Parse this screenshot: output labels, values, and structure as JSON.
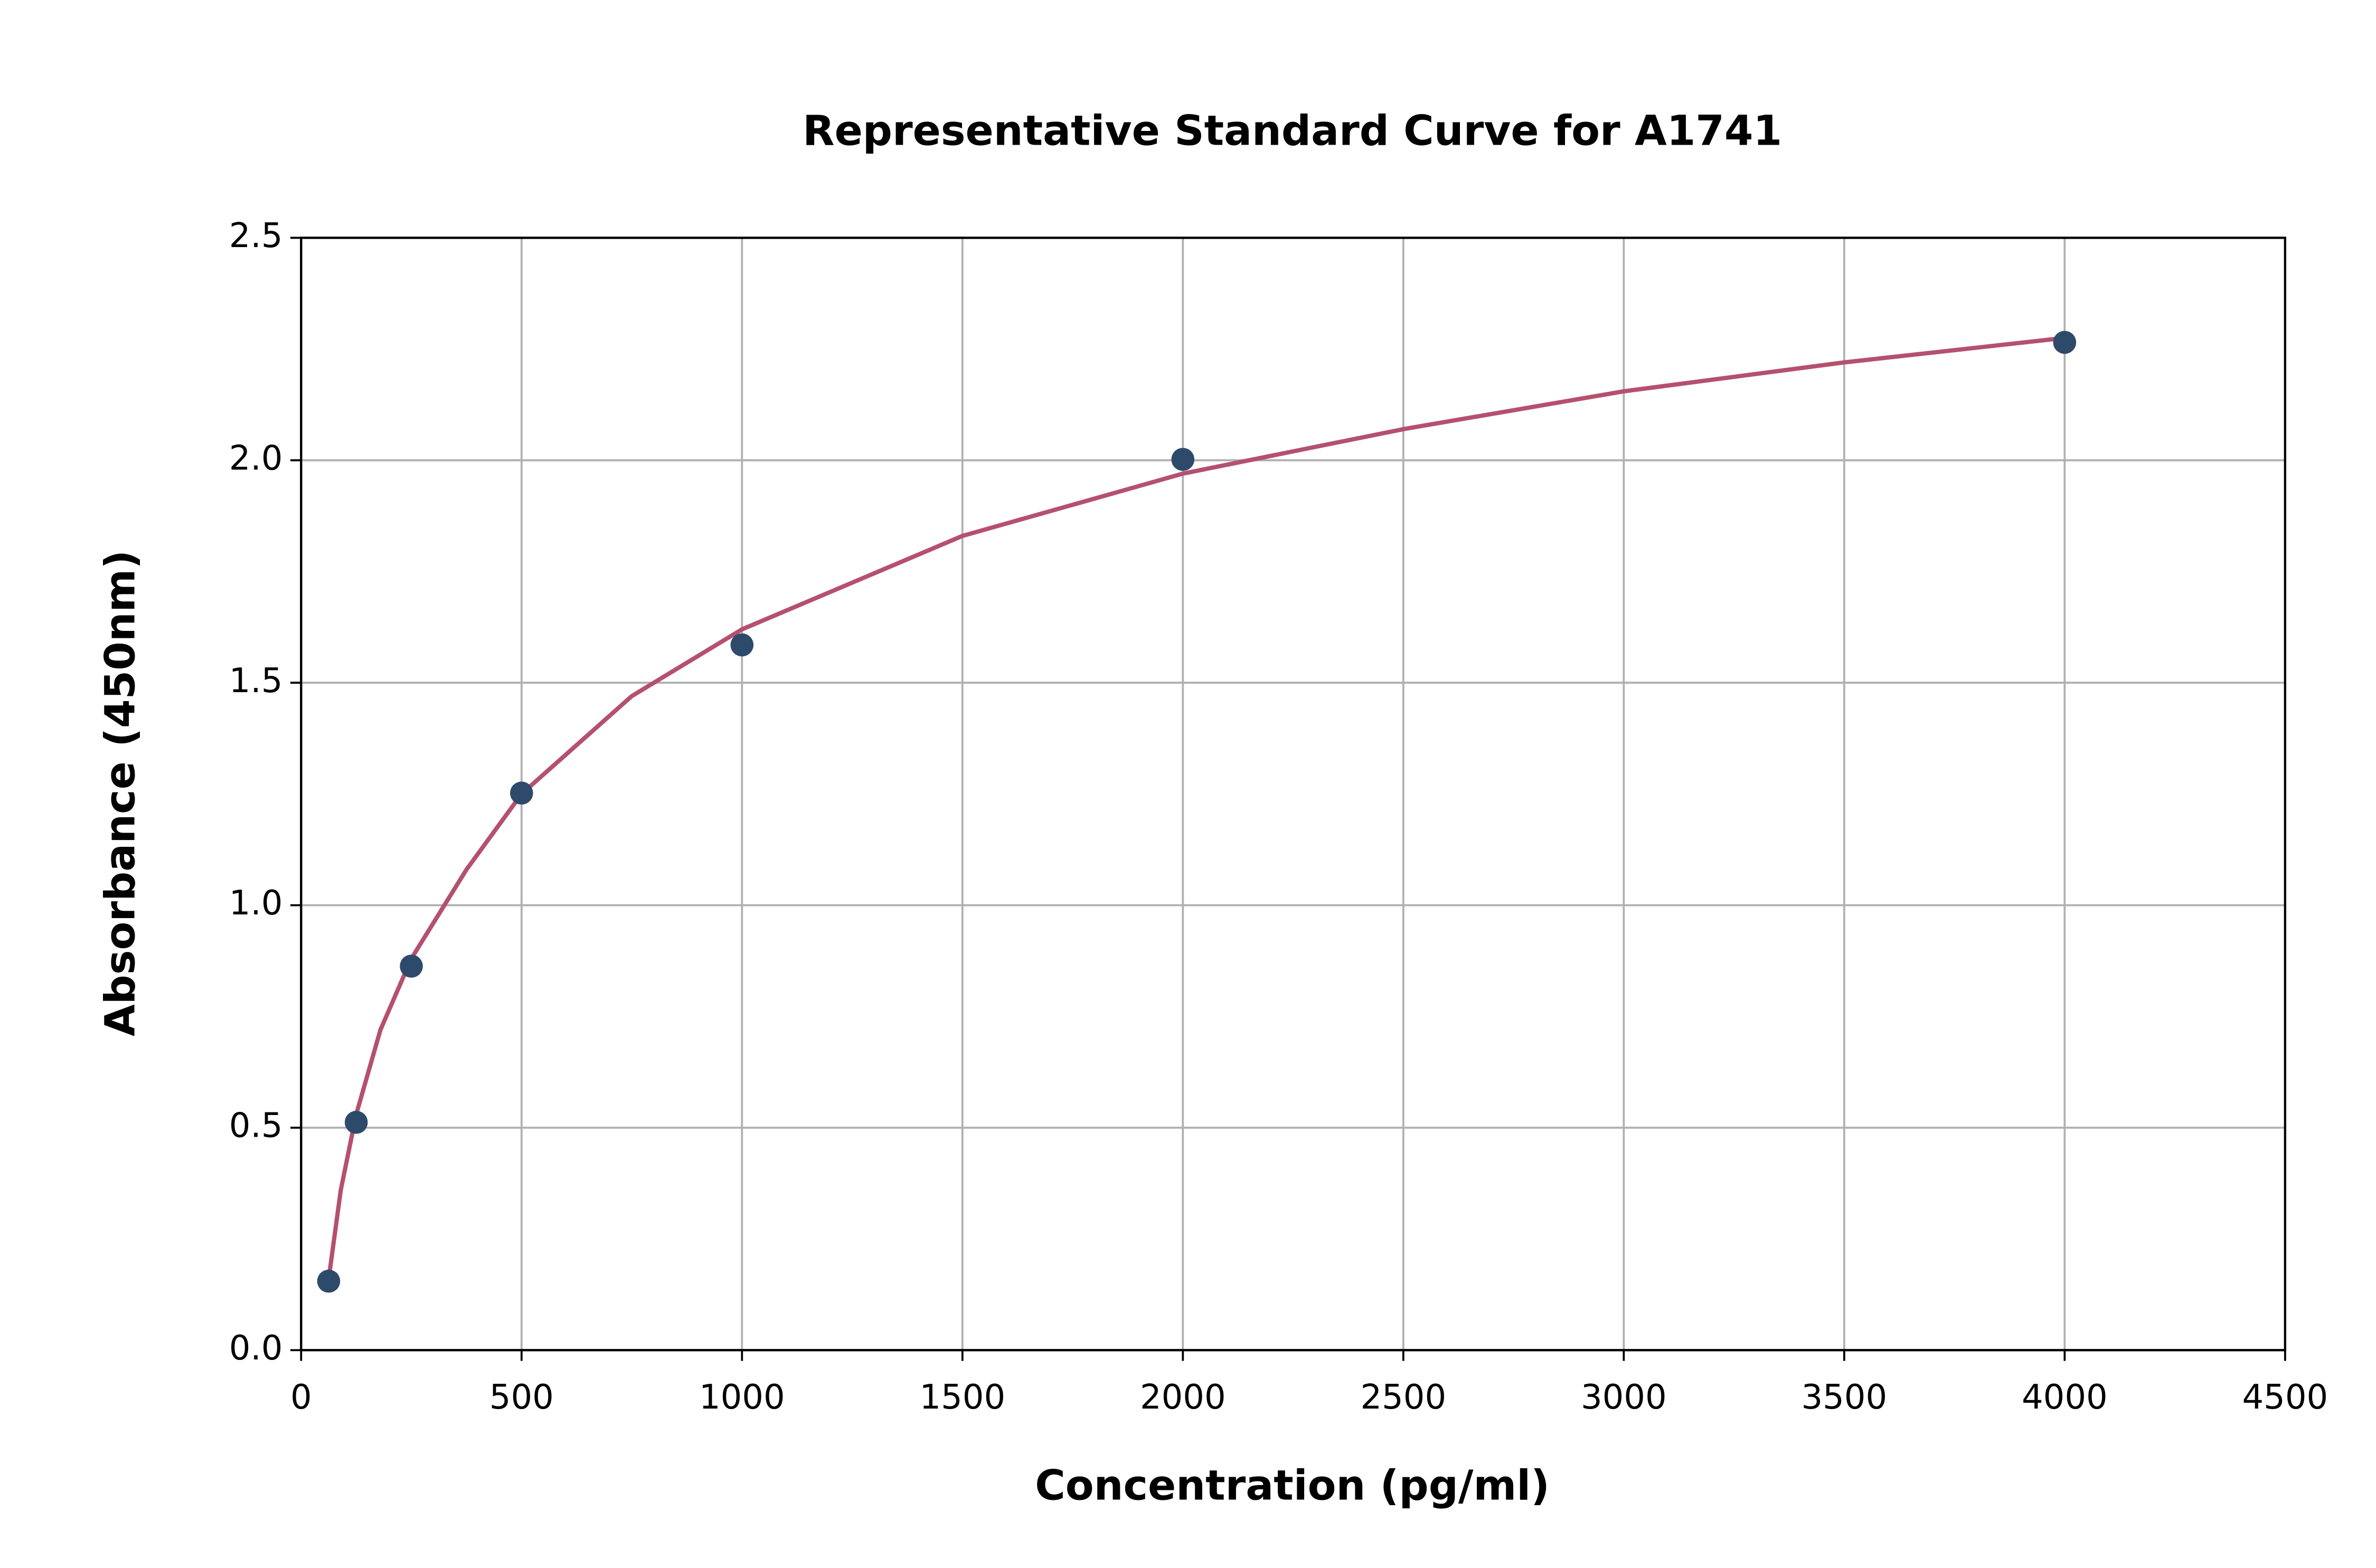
{
  "chart_data": {
    "type": "scatter",
    "title": "Representative Standard Curve for A1741",
    "x_label": "Concentration (pg/ml)",
    "y_label": "Absorbance (450nm)",
    "xlim": [
      0,
      4500
    ],
    "ylim": [
      0,
      2.5
    ],
    "xticks": [
      0,
      500,
      1000,
      1500,
      2000,
      2500,
      3000,
      3500,
      4000,
      4500
    ],
    "yticks": [
      {
        "value": 0,
        "label": "0.0"
      },
      {
        "value": 0.5,
        "label": "0.5"
      },
      {
        "value": 1,
        "label": "1.0"
      },
      {
        "value": 1.5,
        "label": "1.5"
      },
      {
        "value": 2,
        "label": "2.0"
      },
      {
        "value": 2.5,
        "label": "2.5"
      }
    ],
    "grid": true,
    "series": [
      {
        "type": "line",
        "color": "#b5506f",
        "x": [
          62.5,
          90,
          125,
          180,
          250,
          375,
          500,
          750,
          1000,
          1500,
          2000,
          2500,
          3000,
          3500,
          4000
        ],
        "values": [
          0.16,
          0.36,
          0.53,
          0.72,
          0.88,
          1.08,
          1.25,
          1.47,
          1.62,
          1.83,
          1.97,
          2.07,
          2.155,
          2.22,
          2.275
        ]
      },
      {
        "type": "scatter",
        "color": "#2e4a6b",
        "x": [
          62.5,
          125,
          250,
          500,
          1000,
          2000,
          4000
        ],
        "values": [
          0.155,
          0.512,
          0.863,
          1.252,
          1.585,
          2.002,
          2.265
        ]
      }
    ]
  }
}
